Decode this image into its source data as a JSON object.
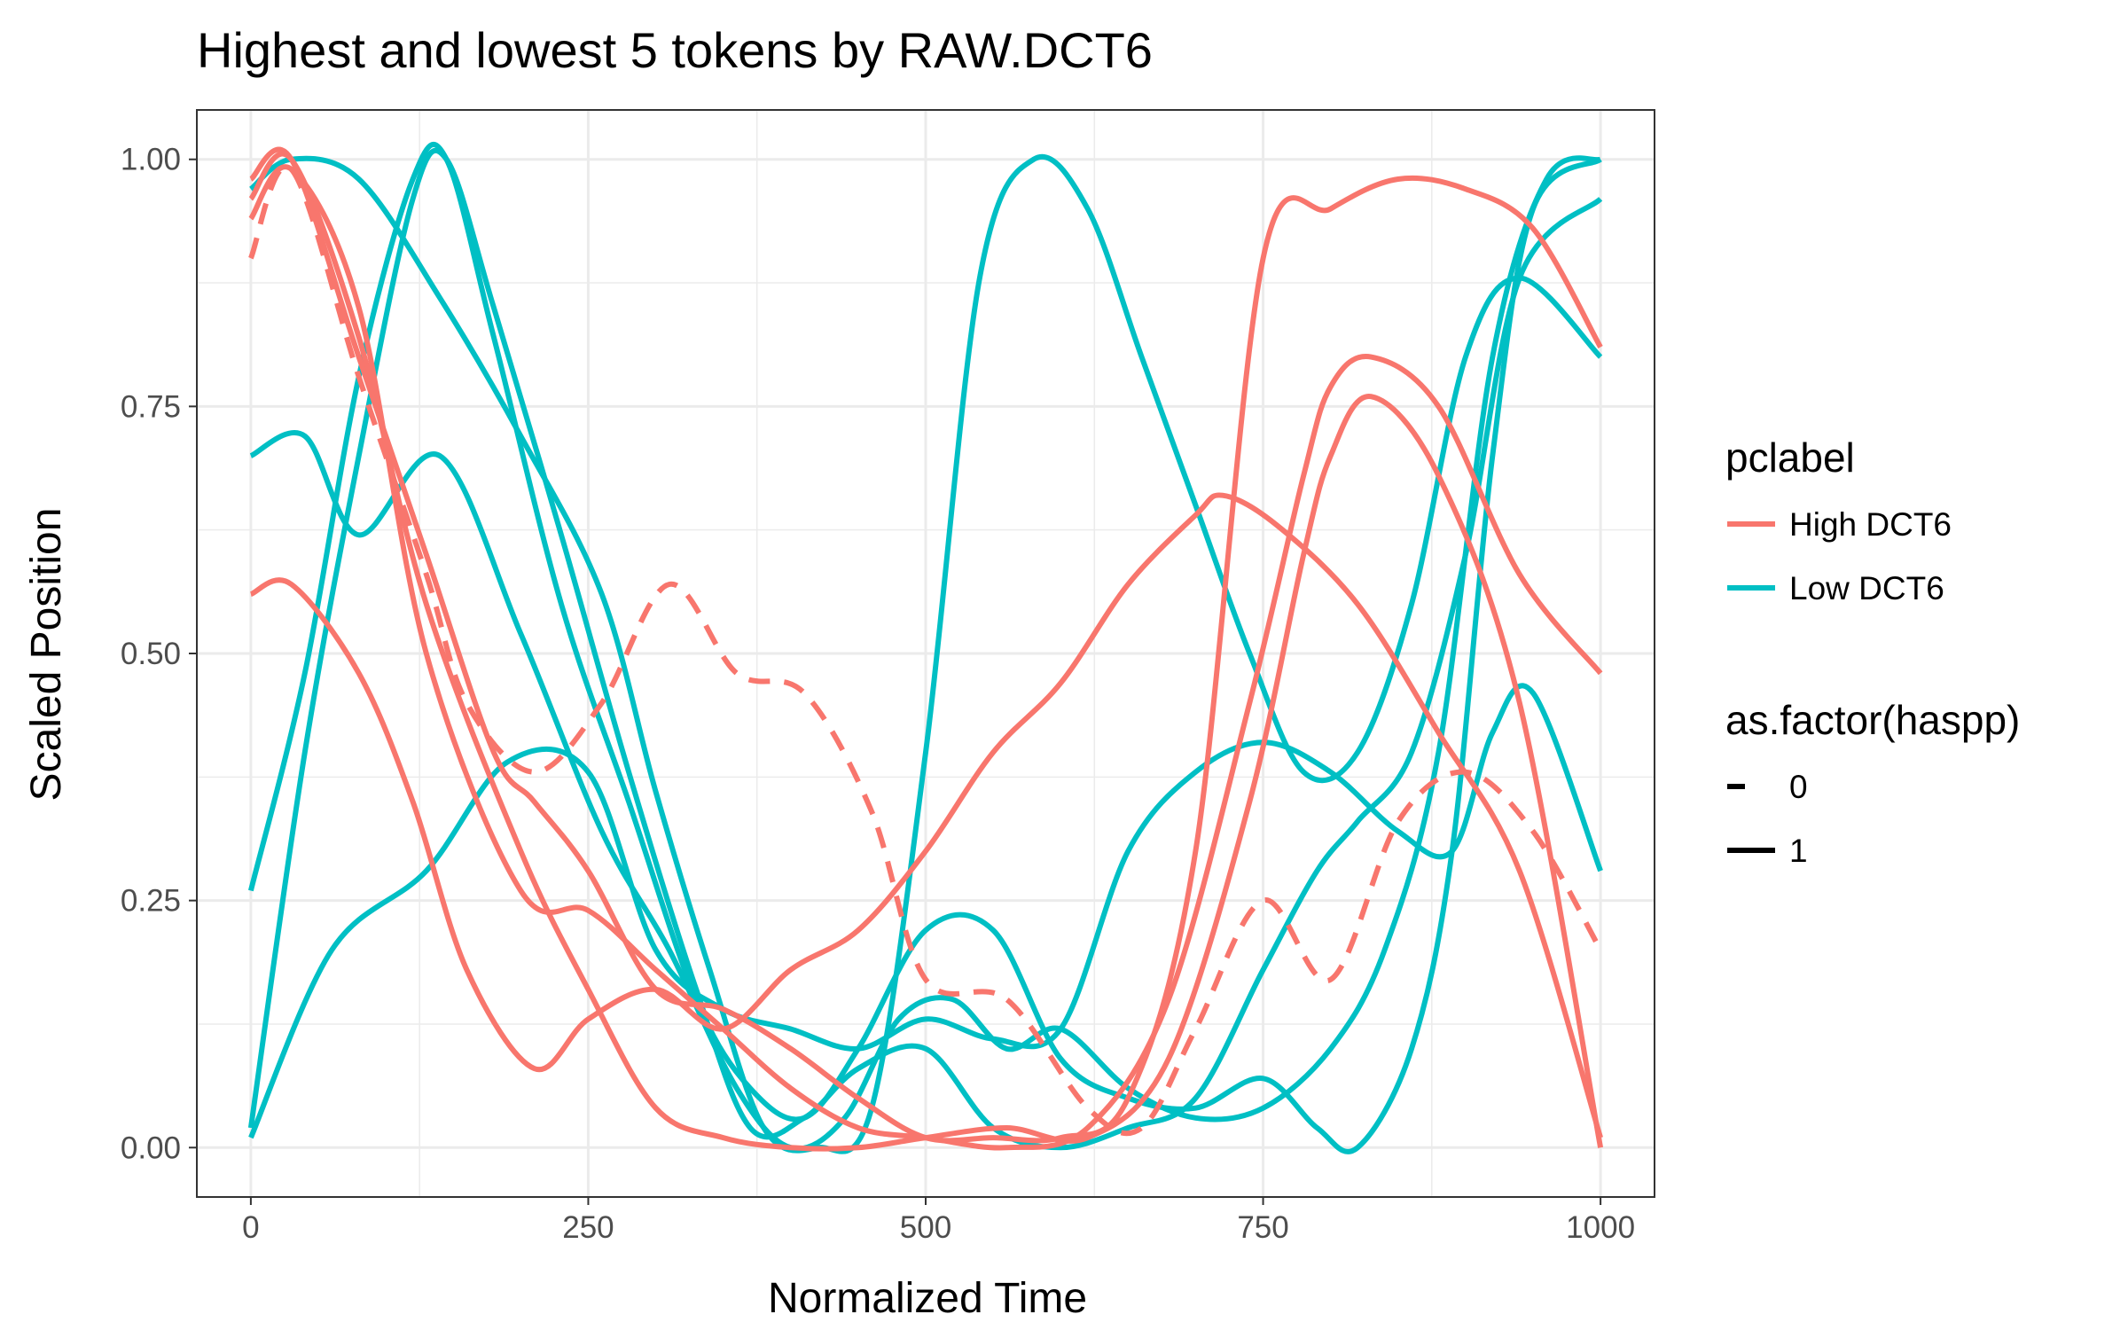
{
  "chart_data": {
    "type": "line",
    "title": "Highest and lowest 5 tokens by RAW.DCT6",
    "xlabel": "Normalized Time",
    "ylabel": "Scaled Position",
    "xlim": [
      -40,
      1040
    ],
    "ylim": [
      -0.05,
      1.05
    ],
    "x_ticks": [
      0,
      250,
      500,
      750,
      1000
    ],
    "x_tick_labels": [
      "0",
      "250",
      "500",
      "750",
      "1000"
    ],
    "y_ticks": [
      0,
      0.25,
      0.5,
      0.75,
      1.0
    ],
    "y_tick_labels": [
      "0.00",
      "0.25",
      "0.50",
      "0.75",
      "1.00"
    ],
    "grid": true,
    "legend_position": "right",
    "legends": [
      {
        "title": "pclabel",
        "type": "color",
        "entries": [
          {
            "label": "High DCT6",
            "color": "#F8766D"
          },
          {
            "label": "Low DCT6",
            "color": "#00BFC4"
          }
        ]
      },
      {
        "title": "as.factor(haspp)",
        "type": "linetype",
        "entries": [
          {
            "label": "0",
            "linetype": "dashed"
          },
          {
            "label": "1",
            "linetype": "solid"
          }
        ]
      }
    ],
    "series": [
      {
        "pclabel": "High DCT6",
        "haspp": "0",
        "x": [
          0,
          30,
          80,
          130,
          160,
          210,
          260,
          310,
          360,
          410,
          460,
          500,
          560,
          620,
          660,
          700,
          750,
          800,
          850,
          900,
          950,
          1000
        ],
        "y": [
          0.9,
          0.99,
          0.78,
          0.58,
          0.45,
          0.38,
          0.45,
          0.57,
          0.48,
          0.46,
          0.34,
          0.17,
          0.15,
          0.04,
          0.02,
          0.12,
          0.25,
          0.17,
          0.33,
          0.38,
          0.32,
          0.2
        ]
      },
      {
        "pclabel": "High DCT6",
        "haspp": "1",
        "x": [
          0,
          30,
          80,
          130,
          200,
          250,
          300,
          350,
          400,
          450,
          500,
          560,
          620,
          680,
          740,
          780,
          800,
          830,
          880,
          940,
          1000
        ],
        "y": [
          0.96,
          1.0,
          0.82,
          0.55,
          0.3,
          0.16,
          0.04,
          0.01,
          0.0,
          0.0,
          0.01,
          0.02,
          0.01,
          0.09,
          0.35,
          0.6,
          0.7,
          0.76,
          0.68,
          0.45,
          0.0
        ]
      },
      {
        "pclabel": "High DCT6",
        "haspp": "1",
        "x": [
          0,
          30,
          80,
          130,
          200,
          250,
          300,
          350,
          400,
          450,
          500,
          560,
          620,
          680,
          740,
          780,
          800,
          830,
          880,
          940,
          1000
        ],
        "y": [
          0.94,
          0.99,
          0.85,
          0.5,
          0.26,
          0.24,
          0.18,
          0.12,
          0.06,
          0.02,
          0.01,
          0.0,
          0.02,
          0.15,
          0.45,
          0.68,
          0.77,
          0.8,
          0.75,
          0.58,
          0.48
        ]
      },
      {
        "pclabel": "High DCT6",
        "haspp": "1",
        "x": [
          0,
          30,
          80,
          130,
          180,
          210,
          250,
          300,
          350,
          400,
          450,
          500,
          550,
          600,
          650,
          700,
          750,
          800,
          850,
          900,
          950,
          1000
        ],
        "y": [
          0.98,
          1.0,
          0.8,
          0.6,
          0.4,
          0.35,
          0.28,
          0.16,
          0.14,
          0.1,
          0.05,
          0.01,
          0.01,
          0.01,
          0.05,
          0.3,
          0.9,
          0.95,
          0.98,
          0.97,
          0.93,
          0.81
        ]
      },
      {
        "pclabel": "High DCT6",
        "haspp": "1",
        "x": [
          0,
          30,
          80,
          120,
          160,
          210,
          250,
          300,
          350,
          400,
          450,
          500,
          550,
          600,
          650,
          700,
          720,
          760,
          820,
          880,
          940,
          1000
        ],
        "y": [
          0.56,
          0.57,
          0.48,
          0.35,
          0.18,
          0.08,
          0.13,
          0.16,
          0.12,
          0.18,
          0.22,
          0.3,
          0.4,
          0.47,
          0.57,
          0.64,
          0.66,
          0.63,
          0.55,
          0.42,
          0.28,
          0.01
        ]
      },
      {
        "pclabel": "Low DCT6",
        "haspp": "1",
        "x": [
          0,
          30,
          80,
          140,
          200,
          260,
          300,
          340,
          380,
          420,
          460,
          500,
          540,
          580,
          620,
          660,
          700,
          740,
          780,
          820,
          860,
          900,
          940,
          1000
        ],
        "y": [
          0.97,
          1.0,
          0.98,
          0.86,
          0.72,
          0.56,
          0.36,
          0.18,
          0.02,
          0.0,
          0.04,
          0.4,
          0.88,
          1.0,
          0.95,
          0.8,
          0.65,
          0.5,
          0.38,
          0.4,
          0.55,
          0.8,
          0.88,
          0.8
        ]
      },
      {
        "pclabel": "Low DCT6",
        "haspp": "1",
        "x": [
          0,
          40,
          80,
          140,
          200,
          260,
          310,
          360,
          400,
          440,
          480,
          520,
          560,
          600,
          650,
          700,
          750,
          800,
          840,
          880,
          920,
          960,
          1000
        ],
        "y": [
          0.7,
          0.72,
          0.62,
          0.7,
          0.52,
          0.32,
          0.2,
          0.06,
          0.0,
          0.03,
          0.13,
          0.15,
          0.1,
          0.12,
          0.06,
          0.03,
          0.04,
          0.1,
          0.2,
          0.4,
          0.8,
          0.98,
          1.0
        ]
      },
      {
        "pclabel": "Low DCT6",
        "haspp": "1",
        "x": [
          0,
          40,
          80,
          120,
          145,
          180,
          230,
          280,
          330,
          370,
          410,
          450,
          500,
          550,
          600,
          650,
          700,
          750,
          790,
          820,
          860,
          900,
          940,
          1000
        ],
        "y": [
          0.02,
          0.4,
          0.7,
          0.96,
          1.0,
          0.85,
          0.62,
          0.38,
          0.16,
          0.02,
          0.03,
          0.08,
          0.1,
          0.02,
          0.0,
          0.02,
          0.05,
          0.18,
          0.28,
          0.33,
          0.4,
          0.6,
          0.88,
          0.96
        ]
      },
      {
        "pclabel": "Low DCT6",
        "haspp": "1",
        "x": [
          0,
          40,
          80,
          120,
          145,
          180,
          230,
          280,
          330,
          370,
          410,
          450,
          500,
          550,
          600,
          650,
          700,
          750,
          790,
          820,
          860,
          890,
          920,
          950,
          1000
        ],
        "y": [
          0.26,
          0.48,
          0.78,
          0.98,
          1.0,
          0.82,
          0.55,
          0.35,
          0.15,
          0.06,
          0.03,
          0.1,
          0.22,
          0.22,
          0.09,
          0.05,
          0.04,
          0.07,
          0.02,
          0.0,
          0.1,
          0.3,
          0.7,
          0.95,
          1.0
        ]
      },
      {
        "pclabel": "Low DCT6",
        "haspp": "1",
        "x": [
          0,
          60,
          130,
          190,
          250,
          300,
          350,
          400,
          450,
          500,
          550,
          600,
          650,
          700,
          750,
          800,
          850,
          890,
          920,
          950,
          1000
        ],
        "y": [
          0.01,
          0.2,
          0.28,
          0.39,
          0.38,
          0.2,
          0.14,
          0.12,
          0.1,
          0.13,
          0.11,
          0.12,
          0.3,
          0.38,
          0.41,
          0.38,
          0.32,
          0.3,
          0.42,
          0.46,
          0.28
        ]
      }
    ]
  }
}
